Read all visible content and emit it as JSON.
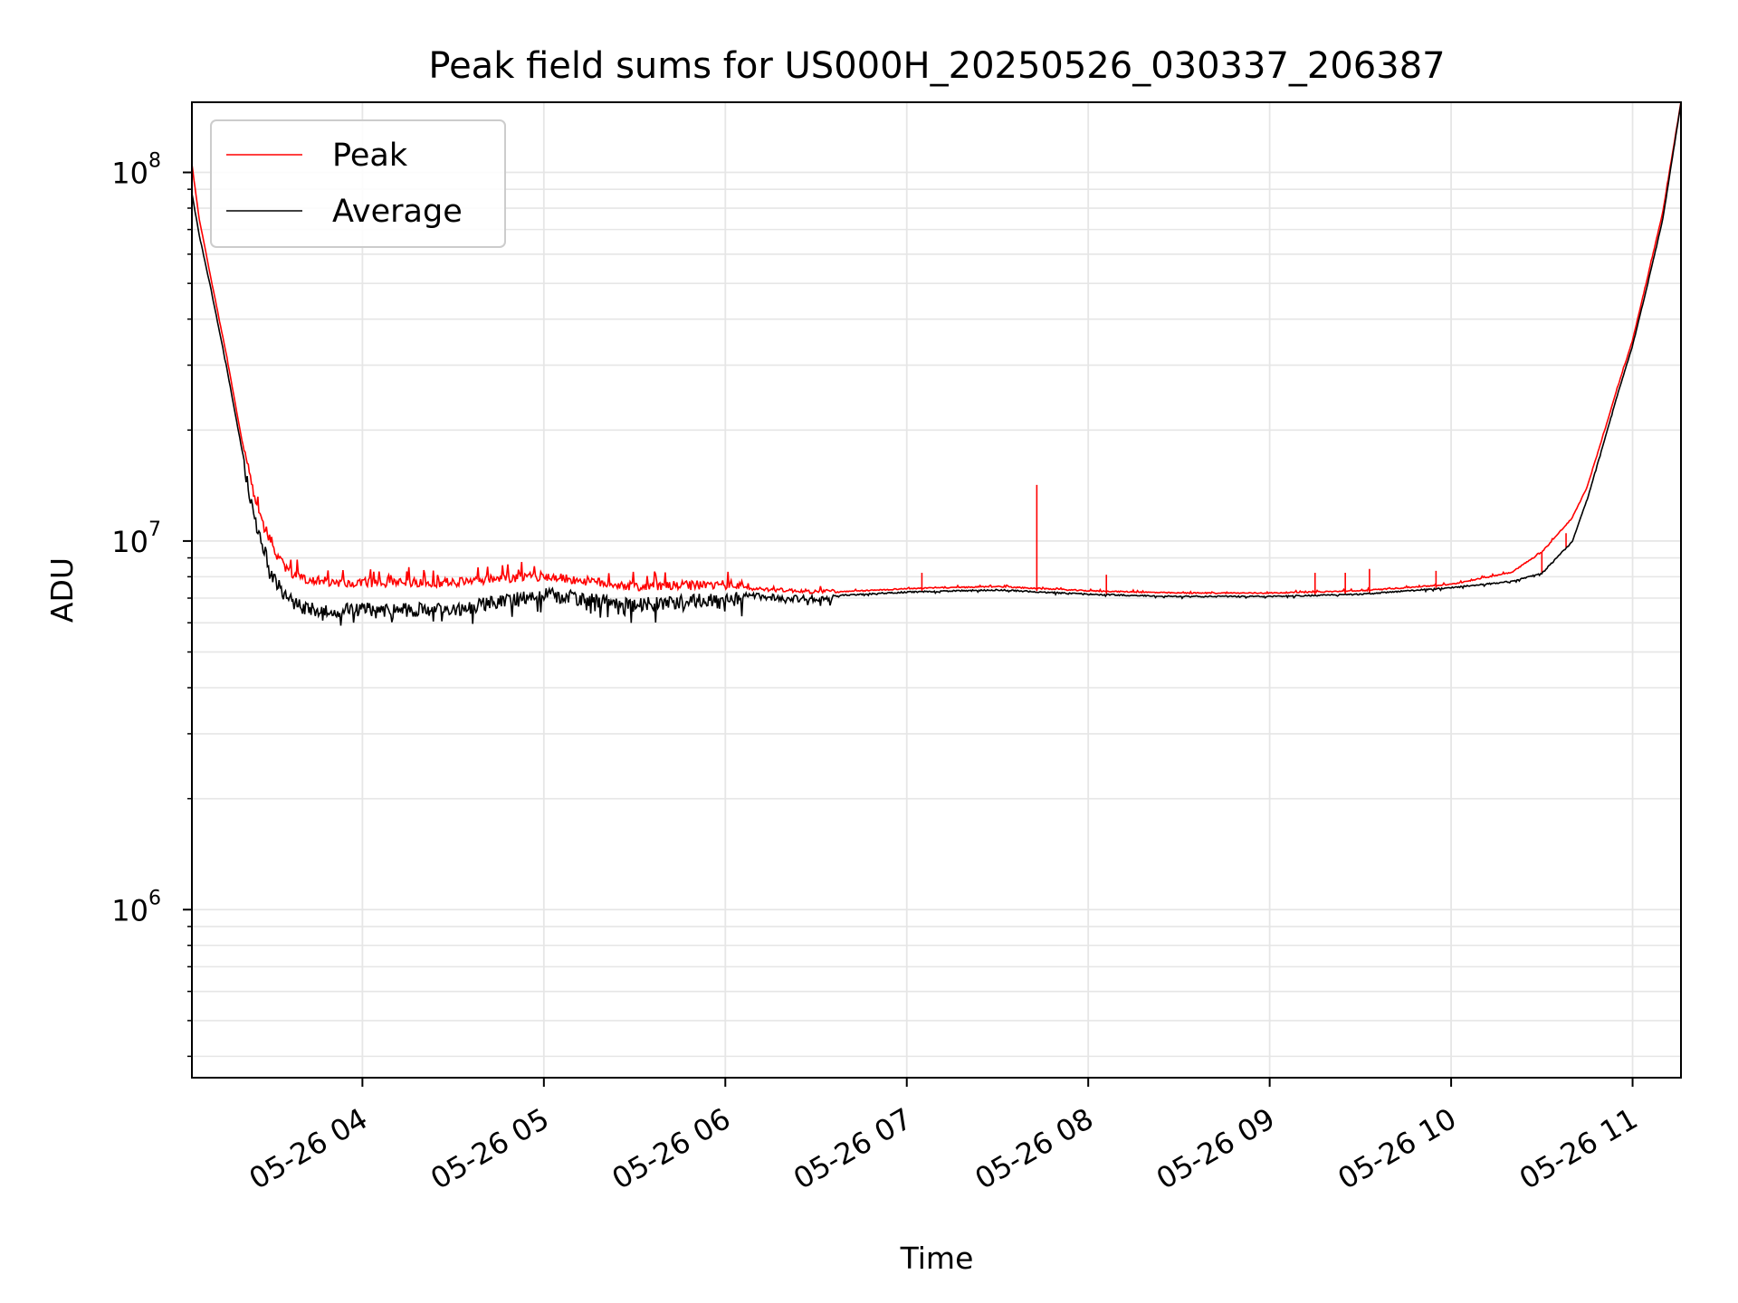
{
  "chart_data": {
    "type": "line",
    "title": "Peak field sums for US000H_20250526_030337_206387",
    "xlabel": "Time",
    "ylabel": "ADU",
    "yscale": "log",
    "ylim": [
      350000,
      155000000
    ],
    "xlim": [
      "2025-05-26 03:03:37",
      "2025-05-26 11:16:00"
    ],
    "grid": true,
    "legend_position": "top-left",
    "x_ticks": [
      {
        "t": "2025-05-26 04:00",
        "label": "05-26 04"
      },
      {
        "t": "2025-05-26 05:00",
        "label": "05-26 05"
      },
      {
        "t": "2025-05-26 06:00",
        "label": "05-26 06"
      },
      {
        "t": "2025-05-26 07:00",
        "label": "05-26 07"
      },
      {
        "t": "2025-05-26 08:00",
        "label": "05-26 08"
      },
      {
        "t": "2025-05-26 09:00",
        "label": "05-26 09"
      },
      {
        "t": "2025-05-26 10:00",
        "label": "05-26 10"
      },
      {
        "t": "2025-05-26 11:00",
        "label": "05-26 11"
      }
    ],
    "y_ticks": [
      {
        "value": 1000000,
        "base": "10",
        "exp": "6"
      },
      {
        "value": 10000000,
        "base": "10",
        "exp": "7"
      },
      {
        "value": 100000000,
        "base": "10",
        "exp": "8"
      }
    ],
    "series": [
      {
        "name": "Peak",
        "color": "#ff0000",
        "x": [
          "03:03:37",
          "03:06",
          "03:10",
          "03:15",
          "03:20",
          "03:25",
          "03:30",
          "03:35",
          "03:40",
          "03:45",
          "03:50",
          "04:00",
          "04:30",
          "05:00",
          "05:30",
          "06:00",
          "06:30",
          "07:00",
          "07:30",
          "08:00",
          "08:30",
          "09:00",
          "09:30",
          "10:00",
          "10:20",
          "10:30",
          "10:40",
          "10:45",
          "10:50",
          "10:55",
          "11:00",
          "11:05",
          "11:10",
          "11:16"
        ],
        "y": [
          105000000,
          75000000,
          51000000,
          32000000,
          19000000,
          12000000,
          9300000,
          8100000,
          7700000,
          7600000,
          7500000,
          7500000,
          7500000,
          7800000,
          7300000,
          7400000,
          7200000,
          7400000,
          7500000,
          7300000,
          7200000,
          7200000,
          7300000,
          7600000,
          8200000,
          9300000,
          11500000,
          14000000,
          19000000,
          26000000,
          35000000,
          52000000,
          78000000,
          155000000
        ]
      },
      {
        "name": "Average",
        "color": "#000000",
        "x": [
          "03:03:37",
          "03:06",
          "03:10",
          "03:15",
          "03:20",
          "03:25",
          "03:30",
          "03:35",
          "03:40",
          "03:45",
          "03:50",
          "04:00",
          "04:30",
          "05:00",
          "05:30",
          "06:00",
          "06:30",
          "07:00",
          "07:30",
          "08:00",
          "08:30",
          "09:00",
          "09:30",
          "10:00",
          "10:20",
          "10:30",
          "10:40",
          "10:45",
          "10:50",
          "10:55",
          "11:00",
          "11:05",
          "11:10",
          "11:16"
        ],
        "y": [
          88000000,
          68000000,
          48000000,
          30000000,
          18000000,
          11500000,
          8500000,
          7300000,
          6900000,
          6800000,
          6800000,
          6800000,
          6800000,
          7500000,
          7000000,
          7300000,
          7100000,
          7300000,
          7400000,
          7200000,
          7100000,
          7100000,
          7200000,
          7500000,
          7800000,
          8200000,
          10000000,
          13000000,
          18000000,
          25000000,
          34000000,
          50000000,
          75000000,
          155000000
        ]
      }
    ],
    "peak_spikes": [
      {
        "x": "07:43",
        "y": 14200000
      },
      {
        "x": "07:05",
        "y": 8200000
      },
      {
        "x": "08:06",
        "y": 8100000
      },
      {
        "x": "09:15",
        "y": 8200000
      },
      {
        "x": "09:25",
        "y": 8200000
      },
      {
        "x": "09:33",
        "y": 8400000
      },
      {
        "x": "09:55",
        "y": 8300000
      },
      {
        "x": "10:30",
        "y": 9300000
      },
      {
        "x": "10:38",
        "y": 10500000
      }
    ]
  }
}
